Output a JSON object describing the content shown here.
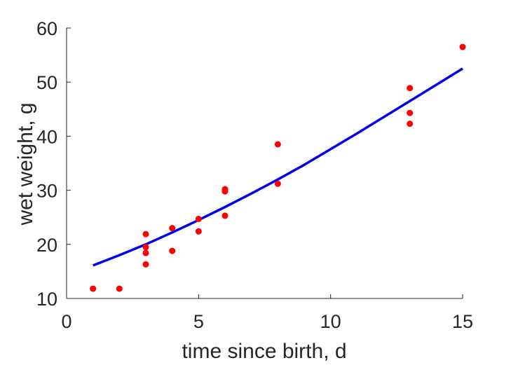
{
  "chart_data": {
    "type": "scatter",
    "xlabel": "time since birth, d",
    "ylabel": "wet weight, g",
    "xlim": [
      0,
      15
    ],
    "ylim": [
      10,
      60
    ],
    "xticks": [
      0,
      5,
      10,
      15
    ],
    "yticks": [
      10,
      20,
      30,
      40,
      50,
      60
    ],
    "grid": false,
    "legend": "none",
    "series": [
      {
        "kind": "scatter",
        "color": "#ff0000",
        "points": [
          [
            1,
            11.8
          ],
          [
            2,
            11.8
          ],
          [
            3,
            21.9
          ],
          [
            3,
            19.5
          ],
          [
            3,
            18.4
          ],
          [
            3,
            16.3
          ],
          [
            4,
            23.0
          ],
          [
            4,
            18.8
          ],
          [
            5,
            24.7
          ],
          [
            5,
            22.4
          ],
          [
            6,
            30.2
          ],
          [
            6,
            29.8
          ],
          [
            6,
            25.3
          ],
          [
            8,
            38.5
          ],
          [
            8,
            31.2
          ],
          [
            13,
            48.9
          ],
          [
            13,
            44.3
          ],
          [
            13,
            42.3
          ],
          [
            15,
            56.5
          ]
        ]
      },
      {
        "kind": "line",
        "color": "#0000ee",
        "points": [
          [
            1,
            16.1
          ],
          [
            2,
            18.0
          ],
          [
            3,
            20.0
          ],
          [
            4,
            22.2
          ],
          [
            5,
            24.5
          ],
          [
            6,
            26.9
          ],
          [
            7,
            29.4
          ],
          [
            8,
            32.0
          ],
          [
            9,
            34.7
          ],
          [
            10,
            37.6
          ],
          [
            11,
            40.5
          ],
          [
            12,
            43.5
          ],
          [
            13,
            46.5
          ],
          [
            14,
            49.5
          ],
          [
            15,
            52.5
          ]
        ]
      }
    ]
  }
}
